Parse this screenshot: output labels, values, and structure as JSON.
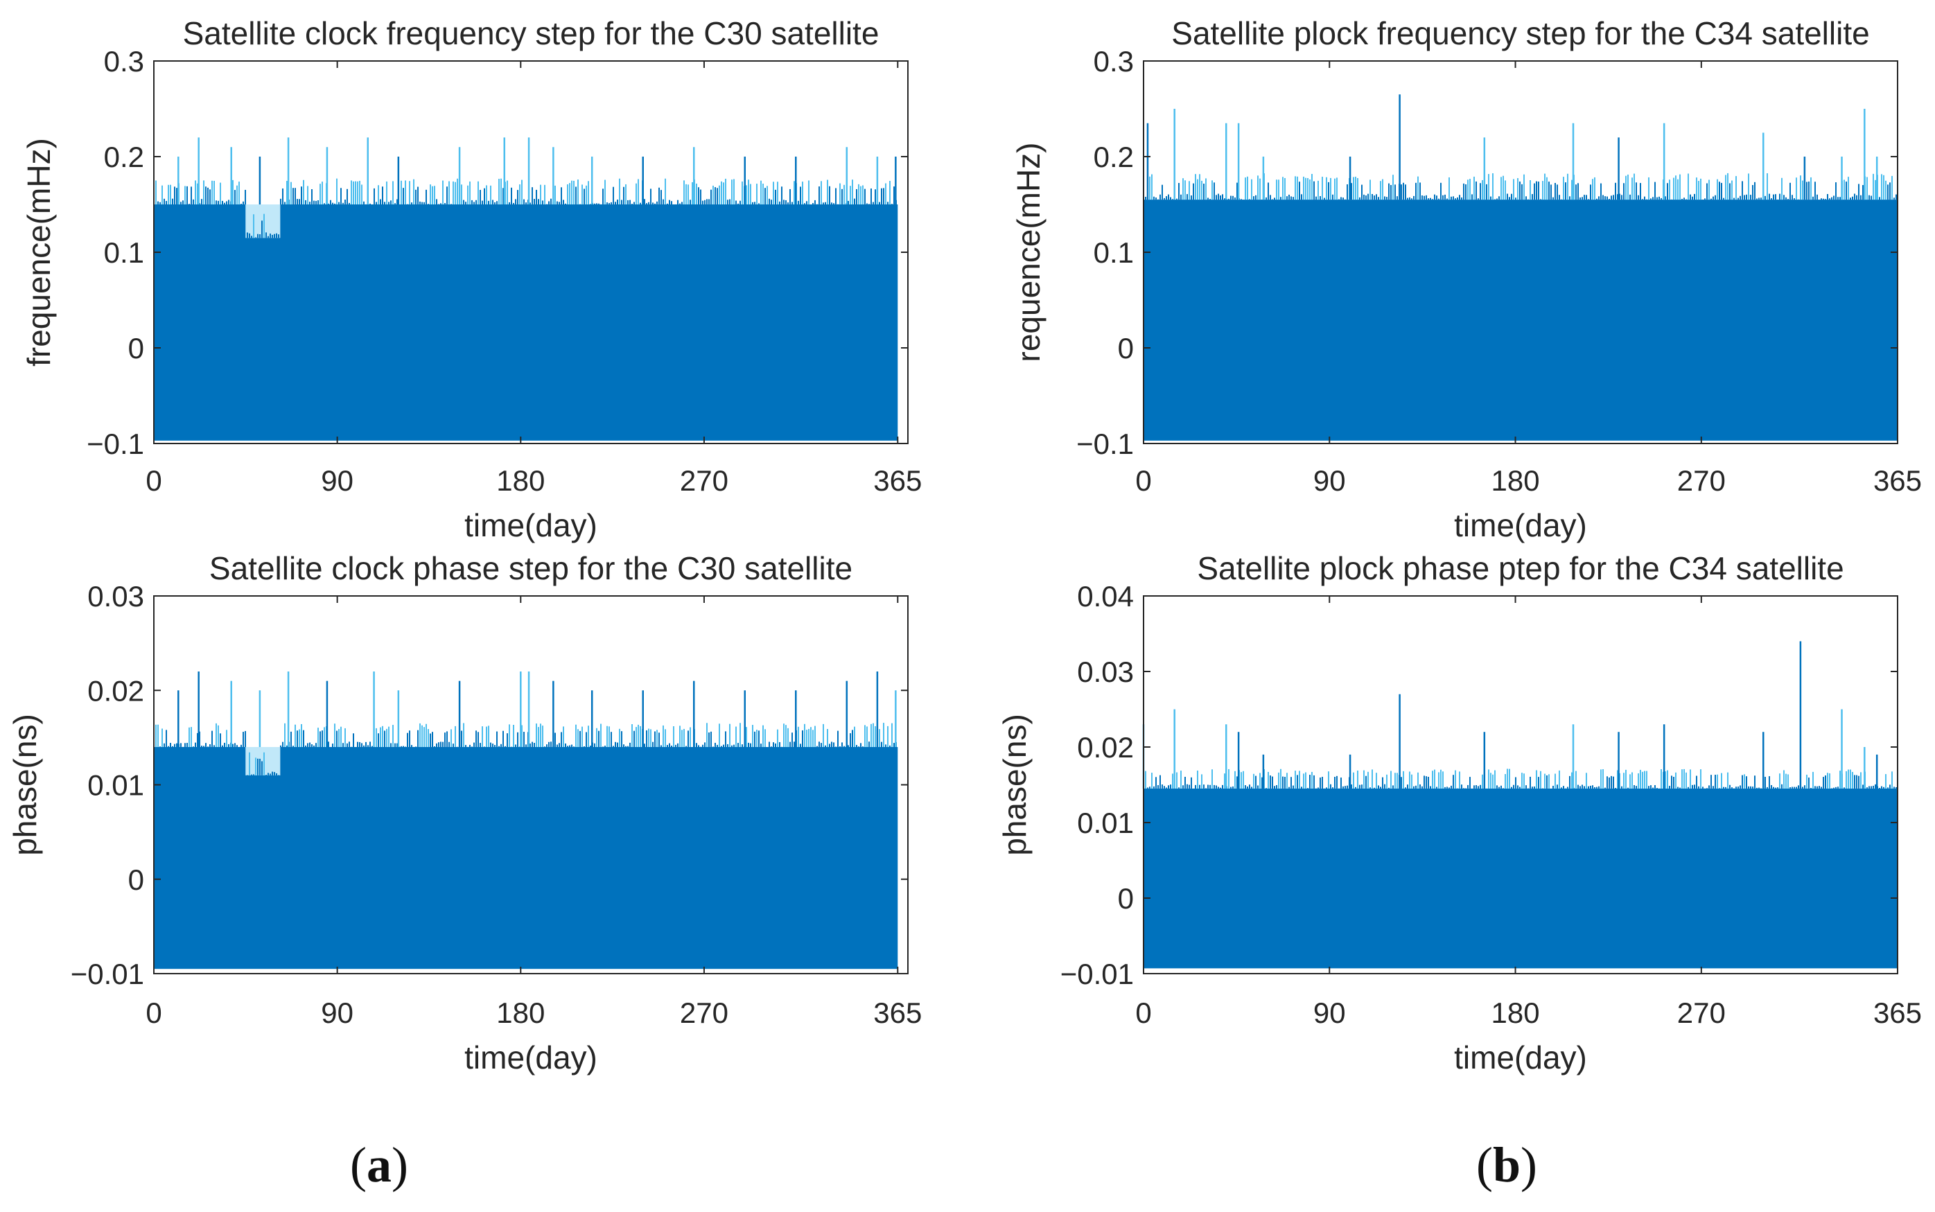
{
  "figure": {
    "panel_labels": [
      "a",
      "b"
    ]
  },
  "colors": {
    "series": "#0072BD",
    "spike": "#4DBEEE",
    "axis": "#262626"
  },
  "chart_data": [
    {
      "type": "bar",
      "panel": "a",
      "title": "Satellite clock frequency step for the C30 satellite",
      "xlabel": "time(day)",
      "ylabel": "frequence(mHz)",
      "xlim": [
        0,
        370
      ],
      "ylim": [
        -0.1,
        0.3
      ],
      "xticks": [
        0,
        90,
        180,
        270,
        365
      ],
      "xtick_labels": [
        "0",
        "90",
        "180",
        "270",
        "365"
      ],
      "yticks": [
        -0.1,
        0,
        0.1,
        0.2,
        0.3
      ],
      "ytick_labels": [
        "−0.1",
        "0",
        "0.1",
        "0.2",
        "0.3"
      ],
      "series": [
        {
          "name": "dense band",
          "summary": "dense vertical bars spanning roughly -0.097 to 0.15 mHz across the year",
          "band_top": 0.15,
          "band_bottom": -0.097,
          "dip": {
            "start_day": 45,
            "end_day": 62,
            "top": 0.115
          },
          "peaks": [
            [
              12,
              0.2
            ],
            [
              22,
              0.22
            ],
            [
              38,
              0.21
            ],
            [
              52,
              0.2
            ],
            [
              66,
              0.22
            ],
            [
              85,
              0.21
            ],
            [
              105,
              0.22
            ],
            [
              120,
              0.2
            ],
            [
              150,
              0.21
            ],
            [
              172,
              0.22
            ],
            [
              184,
              0.22
            ],
            [
              196,
              0.21
            ],
            [
              215,
              0.2
            ],
            [
              240,
              0.2
            ],
            [
              265,
              0.21
            ],
            [
              290,
              0.2
            ],
            [
              315,
              0.2
            ],
            [
              340,
              0.21
            ],
            [
              355,
              0.2
            ],
            [
              364,
              0.2
            ]
          ]
        }
      ]
    },
    {
      "type": "bar",
      "panel": "b",
      "title": "Satellite plock frequency step for the C34 satellite",
      "xlabel": "time(day)",
      "ylabel": "requence(mHz)",
      "xlim": [
        0,
        365
      ],
      "ylim": [
        -0.1,
        0.3
      ],
      "xticks": [
        0,
        90,
        180,
        270,
        365
      ],
      "xtick_labels": [
        "0",
        "90",
        "180",
        "270",
        "365"
      ],
      "yticks": [
        -0.1,
        0,
        0.1,
        0.2,
        0.3
      ],
      "ytick_labels": [
        "−0.1",
        "0",
        "0.1",
        "0.2",
        "0.3"
      ],
      "series": [
        {
          "name": "dense band",
          "summary": "dense vertical bars spanning roughly -0.097 to 0.155 mHz across the year",
          "band_top": 0.155,
          "band_bottom": -0.097,
          "peaks": [
            [
              2,
              0.235
            ],
            [
              15,
              0.25
            ],
            [
              40,
              0.235
            ],
            [
              46,
              0.235
            ],
            [
              58,
              0.2
            ],
            [
              100,
              0.2
            ],
            [
              124,
              0.265
            ],
            [
              165,
              0.22
            ],
            [
              208,
              0.235
            ],
            [
              230,
              0.22
            ],
            [
              252,
              0.235
            ],
            [
              300,
              0.225
            ],
            [
              320,
              0.2
            ],
            [
              338,
              0.2
            ],
            [
              349,
              0.25
            ],
            [
              355,
              0.2
            ]
          ]
        }
      ]
    },
    {
      "type": "bar",
      "panel": "a",
      "title": "Satellite clock phase step for the C30 satellite",
      "xlabel": "time(day)",
      "ylabel": "phase(ns)",
      "xlim": [
        0,
        370
      ],
      "ylim": [
        -0.01,
        0.03
      ],
      "xticks": [
        0,
        90,
        180,
        270,
        365
      ],
      "xtick_labels": [
        "0",
        "90",
        "180",
        "270",
        "365"
      ],
      "yticks": [
        -0.01,
        0,
        0.01,
        0.02,
        0.03
      ],
      "ytick_labels": [
        "−0.01",
        "0",
        "0.01",
        "0.02",
        "0.03"
      ],
      "series": [
        {
          "name": "dense band",
          "summary": "dense vertical bars spanning roughly -0.0095 to 0.014 ns across the year",
          "band_top": 0.014,
          "band_bottom": -0.0095,
          "dip": {
            "start_day": 45,
            "end_day": 62,
            "top": 0.011
          },
          "peaks": [
            [
              12,
              0.02
            ],
            [
              22,
              0.022
            ],
            [
              38,
              0.021
            ],
            [
              52,
              0.02
            ],
            [
              66,
              0.022
            ],
            [
              85,
              0.021
            ],
            [
              108,
              0.022
            ],
            [
              120,
              0.02
            ],
            [
              150,
              0.021
            ],
            [
              180,
              0.022
            ],
            [
              184,
              0.022
            ],
            [
              196,
              0.021
            ],
            [
              215,
              0.02
            ],
            [
              240,
              0.02
            ],
            [
              265,
              0.021
            ],
            [
              290,
              0.02
            ],
            [
              315,
              0.02
            ],
            [
              340,
              0.021
            ],
            [
              355,
              0.022
            ],
            [
              364,
              0.02
            ]
          ]
        }
      ]
    },
    {
      "type": "bar",
      "panel": "b",
      "title": "Satellite plock phase ptep for the C34 satellite",
      "xlabel": "time(day)",
      "ylabel": "phase(ns)",
      "xlim": [
        0,
        365
      ],
      "ylim": [
        -0.01,
        0.04
      ],
      "xticks": [
        0,
        90,
        180,
        270,
        365
      ],
      "xtick_labels": [
        "0",
        "90",
        "180",
        "270",
        "365"
      ],
      "yticks": [
        -0.01,
        0,
        0.01,
        0.02,
        0.03,
        0.04
      ],
      "ytick_labels": [
        "−0.01",
        "0",
        "0.01",
        "0.02",
        "0.03",
        "0.04"
      ],
      "series": [
        {
          "name": "dense band",
          "summary": "dense vertical bars spanning roughly -0.0093 to 0.0145 ns across the year",
          "band_top": 0.0145,
          "band_bottom": -0.0093,
          "peaks": [
            [
              0,
              0.023
            ],
            [
              15,
              0.025
            ],
            [
              40,
              0.023
            ],
            [
              46,
              0.022
            ],
            [
              58,
              0.019
            ],
            [
              100,
              0.019
            ],
            [
              124,
              0.027
            ],
            [
              165,
              0.022
            ],
            [
              208,
              0.023
            ],
            [
              230,
              0.022
            ],
            [
              252,
              0.023
            ],
            [
              300,
              0.022
            ],
            [
              318,
              0.034
            ],
            [
              338,
              0.025
            ],
            [
              349,
              0.02
            ],
            [
              355,
              0.019
            ]
          ]
        }
      ]
    }
  ]
}
